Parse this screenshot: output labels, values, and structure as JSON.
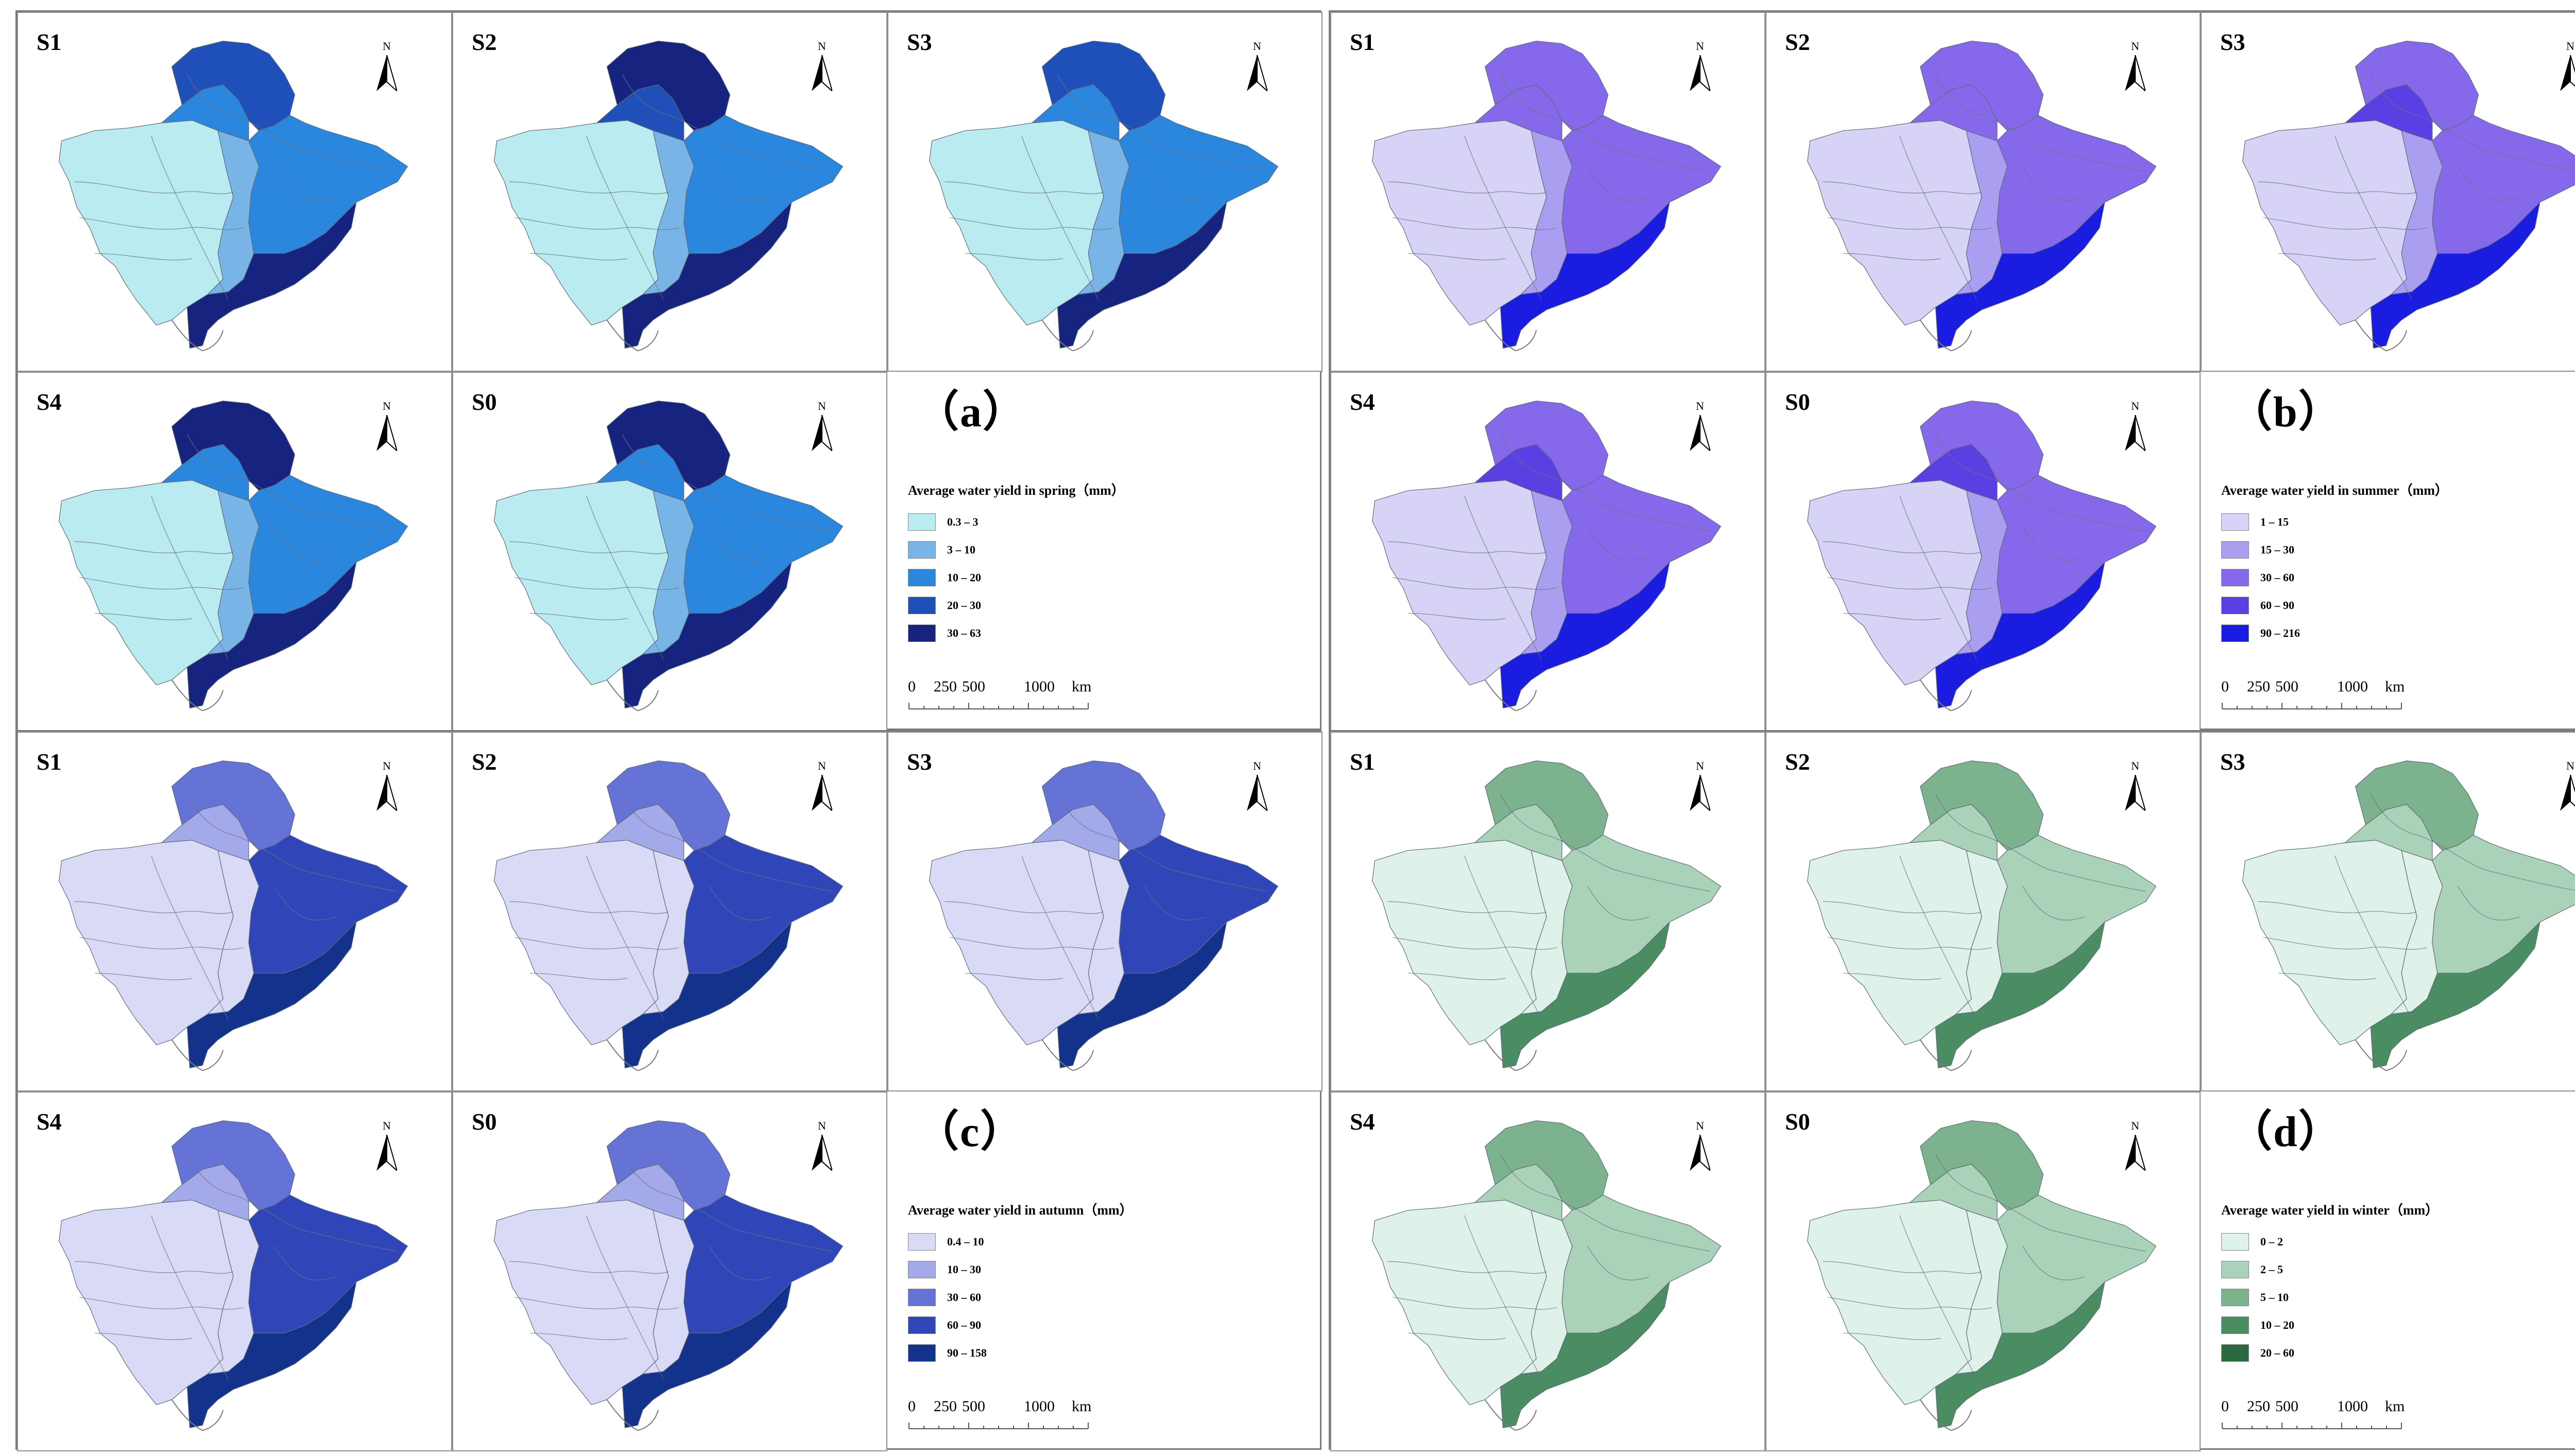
{
  "panels": [
    {
      "id": "a",
      "label": "（a）",
      "legend_title": "Average water yield in spring（mm）",
      "classes": [
        {
          "range": "0.3 – 3",
          "color": "#b9ebf0"
        },
        {
          "range": "3 – 10",
          "color": "#78b4e6"
        },
        {
          "range": "10 – 20",
          "color": "#2b86dd"
        },
        {
          "range": "20 – 30",
          "color": "#1f4fb8"
        },
        {
          "range": "30 – 63",
          "color": "#16237f"
        }
      ],
      "maps": [
        "S1",
        "S2",
        "S3",
        "S4",
        "S0"
      ]
    },
    {
      "id": "b",
      "label": "（b）",
      "legend_title": "Average water yield in summer（mm）",
      "classes": [
        {
          "range": "1 – 15",
          "color": "#d6d3f7"
        },
        {
          "range": "15 – 30",
          "color": "#a99ef0"
        },
        {
          "range": "30 – 60",
          "color": "#8669ea"
        },
        {
          "range": "60 – 90",
          "color": "#5a3fe3"
        },
        {
          "range": "90 – 216",
          "color": "#1a1ce0"
        }
      ],
      "maps": [
        "S1",
        "S2",
        "S3",
        "S4",
        "S0"
      ]
    },
    {
      "id": "c",
      "label": "（c）",
      "legend_title": "Average water yield in autumn（mm）",
      "classes": [
        {
          "range": "0.4 – 10",
          "color": "#d9dbf6"
        },
        {
          "range": "10 – 30",
          "color": "#a4a9e9"
        },
        {
          "range": "30 – 60",
          "color": "#6673d6"
        },
        {
          "range": "60 – 90",
          "color": "#3046b8"
        },
        {
          "range": "90 – 158",
          "color": "#12328c"
        }
      ],
      "maps": [
        "S1",
        "S2",
        "S3",
        "S4",
        "S0"
      ]
    },
    {
      "id": "d",
      "label": "（d）",
      "legend_title": "Average water yield in winter（mm）",
      "classes": [
        {
          "range": "0 – 2",
          "color": "#def2ea"
        },
        {
          "range": "2 – 5",
          "color": "#a9d2b8"
        },
        {
          "range": "5 – 10",
          "color": "#7cb38e"
        },
        {
          "range": "10 – 20",
          "color": "#4a8d62"
        },
        {
          "range": "20 – 60",
          "color": "#2b6a3f"
        }
      ],
      "maps": [
        "S1",
        "S2",
        "S3",
        "S4",
        "S0"
      ]
    }
  ],
  "north_label": "N",
  "scale_bar": {
    "ticks": [
      "0",
      "250",
      "500",
      "1000"
    ],
    "unit": "km"
  }
}
